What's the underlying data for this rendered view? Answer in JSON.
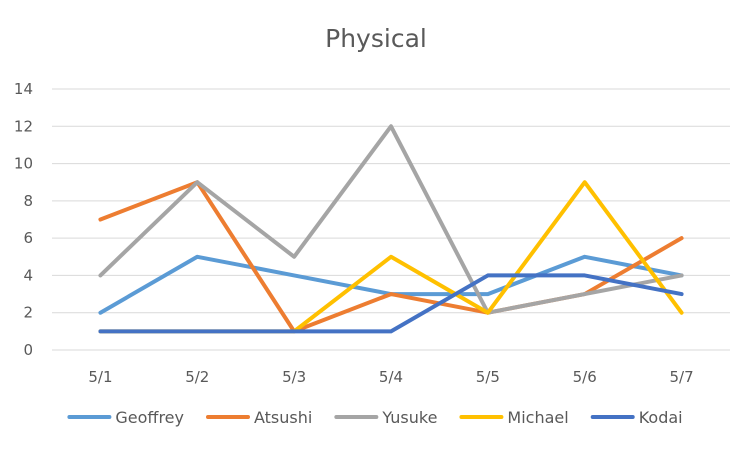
{
  "chart_data": {
    "type": "line",
    "title": "Physical",
    "xlabel": "",
    "ylabel": "",
    "categories": [
      "5/1",
      "5/2",
      "5/3",
      "5/4",
      "5/5",
      "5/6",
      "5/7"
    ],
    "ylim": [
      0,
      14
    ],
    "yticks": [
      0,
      2,
      4,
      6,
      8,
      10,
      12,
      14
    ],
    "grid": true,
    "legend_position": "bottom",
    "series": [
      {
        "name": "Geoffrey",
        "color": "#5B9BD5",
        "values": [
          2,
          5,
          4,
          3,
          3,
          5,
          4
        ]
      },
      {
        "name": "Atsushi",
        "color": "#ED7D31",
        "values": [
          7,
          9,
          1,
          3,
          2,
          3,
          6
        ]
      },
      {
        "name": "Yusuke",
        "color": "#A5A5A5",
        "values": [
          4,
          9,
          5,
          12,
          2,
          3,
          4
        ]
      },
      {
        "name": "Michael",
        "color": "#FFC000",
        "values": [
          1,
          1,
          1,
          5,
          2,
          9,
          2
        ]
      },
      {
        "name": "Kodai",
        "color": "#4472C4",
        "values": [
          1,
          1,
          1,
          1,
          4,
          4,
          3
        ]
      }
    ]
  }
}
